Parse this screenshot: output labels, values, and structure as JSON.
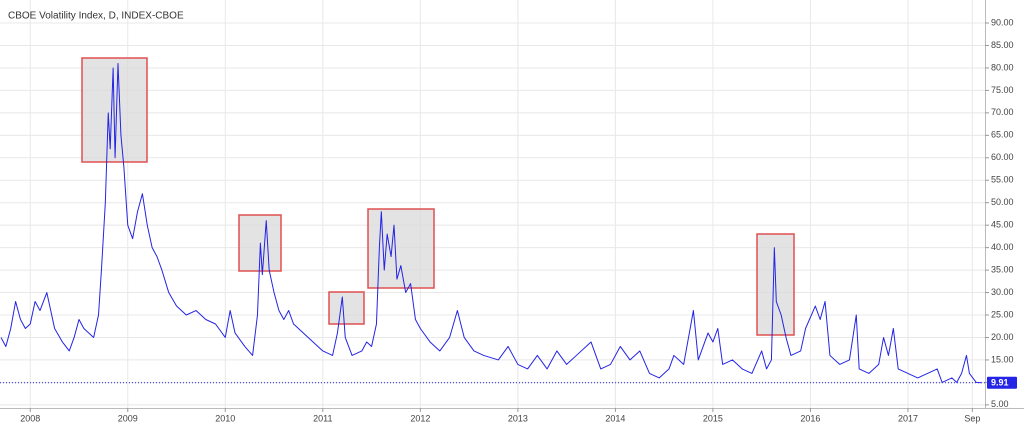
{
  "chart_data": {
    "type": "line",
    "title": "CBOE Volatility Index, D, INDEX-CBOE",
    "color": "#2424e6",
    "grid": true,
    "last_value": 9.91,
    "xlim": [
      2007.69,
      2017.79
    ],
    "xticks": [
      2008,
      2009,
      2010,
      2011,
      2012,
      2013,
      2014,
      2015,
      2016,
      2017,
      {
        "value": 2017.66,
        "label": "Sep"
      }
    ],
    "ylim": [
      4.3,
      92.9
    ],
    "yticks": [
      {
        "value": 5,
        "label": "5.00"
      },
      {
        "value": 10,
        "label": "10.00"
      },
      {
        "value": 15,
        "label": "15.00"
      },
      {
        "value": 20,
        "label": "20.00"
      },
      {
        "value": 25,
        "label": "25.00"
      },
      {
        "value": 30,
        "label": "30.00"
      },
      {
        "value": 35,
        "label": "35.00"
      },
      {
        "value": 40,
        "label": "40.00"
      },
      {
        "value": 45,
        "label": "45.00"
      },
      {
        "value": 50,
        "label": "50.00"
      },
      {
        "value": 55,
        "label": "55.00"
      },
      {
        "value": 60,
        "label": "60.00"
      },
      {
        "value": 65,
        "label": "65.00"
      },
      {
        "value": 70,
        "label": "70.00"
      },
      {
        "value": 75,
        "label": "75.00"
      },
      {
        "value": 80,
        "label": "80.00"
      },
      {
        "value": 85,
        "label": "85.00"
      },
      {
        "value": 90,
        "label": "90.00"
      }
    ],
    "x": [
      2007.7,
      2007.75,
      2007.8,
      2007.85,
      2007.9,
      2007.95,
      2008.0,
      2008.05,
      2008.1,
      2008.17,
      2008.2,
      2008.25,
      2008.33,
      2008.4,
      2008.45,
      2008.5,
      2008.55,
      2008.6,
      2008.65,
      2008.7,
      2008.73,
      2008.77,
      2008.8,
      2008.82,
      2008.85,
      2008.87,
      2008.9,
      2008.93,
      2008.96,
      2009.0,
      2009.05,
      2009.1,
      2009.15,
      2009.2,
      2009.25,
      2009.3,
      2009.35,
      2009.42,
      2009.5,
      2009.6,
      2009.7,
      2009.8,
      2009.9,
      2010.0,
      2010.05,
      2010.1,
      2010.2,
      2010.28,
      2010.33,
      2010.36,
      2010.38,
      2010.42,
      2010.45,
      2010.5,
      2010.55,
      2010.6,
      2010.65,
      2010.7,
      2010.8,
      2010.9,
      2011.0,
      2011.1,
      2011.15,
      2011.2,
      2011.23,
      2011.3,
      2011.4,
      2011.45,
      2011.5,
      2011.55,
      2011.58,
      2011.6,
      2011.63,
      2011.66,
      2011.7,
      2011.73,
      2011.76,
      2011.8,
      2011.85,
      2011.9,
      2011.95,
      2012.0,
      2012.1,
      2012.2,
      2012.3,
      2012.38,
      2012.45,
      2012.55,
      2012.65,
      2012.8,
      2012.9,
      2013.0,
      2013.1,
      2013.2,
      2013.3,
      2013.4,
      2013.5,
      2013.6,
      2013.75,
      2013.85,
      2013.95,
      2014.05,
      2014.15,
      2014.25,
      2014.35,
      2014.45,
      2014.55,
      2014.6,
      2014.7,
      2014.8,
      2014.85,
      2014.95,
      2015.0,
      2015.05,
      2015.1,
      2015.2,
      2015.3,
      2015.4,
      2015.5,
      2015.55,
      2015.6,
      2015.63,
      2015.65,
      2015.7,
      2015.75,
      2015.8,
      2015.9,
      2015.95,
      2016.05,
      2016.1,
      2016.15,
      2016.2,
      2016.3,
      2016.4,
      2016.47,
      2016.5,
      2016.6,
      2016.7,
      2016.75,
      2016.8,
      2016.85,
      2016.9,
      2017.0,
      2017.1,
      2017.2,
      2017.3,
      2017.35,
      2017.45,
      2017.5,
      2017.55,
      2017.6,
      2017.63,
      2017.7,
      2017.75
    ],
    "values": [
      20,
      18,
      22,
      28,
      24,
      22,
      23,
      28,
      26,
      30,
      27,
      22,
      19,
      17,
      20,
      24,
      22,
      21,
      20,
      25,
      35,
      50,
      70,
      62,
      80,
      60,
      81,
      65,
      58,
      45,
      42,
      48,
      52,
      45,
      40,
      38,
      35,
      30,
      27,
      25,
      26,
      24,
      23,
      20,
      26,
      21,
      18,
      16,
      25,
      41,
      34,
      46,
      35,
      30,
      26,
      24,
      26,
      23,
      21,
      19,
      17,
      16,
      21,
      29,
      20,
      16,
      17,
      19,
      18,
      23,
      40,
      48,
      35,
      43,
      38,
      45,
      33,
      36,
      30,
      32,
      24,
      22,
      19,
      17,
      20,
      26,
      20,
      17,
      16,
      15,
      18,
      14,
      13,
      16,
      13,
      17,
      14,
      16,
      19,
      13,
      14,
      18,
      15,
      17,
      12,
      11,
      13,
      16,
      14,
      26,
      15,
      21,
      19,
      22,
      14,
      15,
      13,
      12,
      17,
      13,
      15,
      40,
      28,
      25,
      20,
      16,
      17,
      22,
      27,
      24,
      28,
      16,
      14,
      15,
      25,
      13,
      12,
      14,
      20,
      16,
      22,
      13,
      12,
      11,
      12,
      13,
      10,
      11,
      10,
      12,
      16,
      12,
      10,
      9.91
    ]
  }
}
